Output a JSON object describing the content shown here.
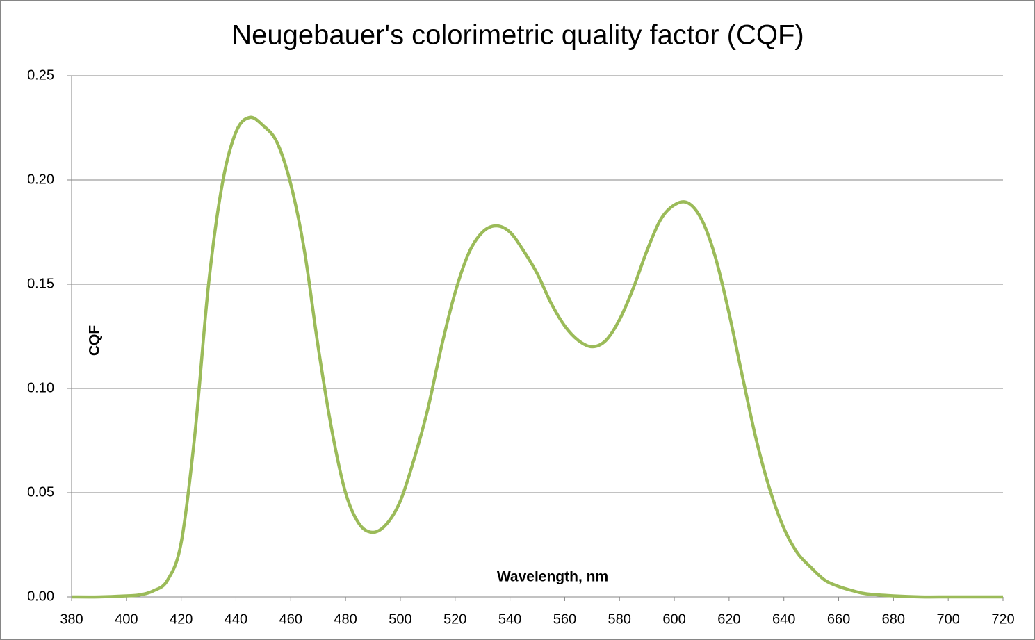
{
  "chart_data": {
    "type": "line",
    "title": "Neugebauer's colorimetric quality factor (CQF)",
    "x_label": "Wavelength, nm",
    "y_label": "CQF",
    "x": [
      380,
      390,
      400,
      405,
      410,
      415,
      420,
      425,
      430,
      435,
      440,
      445,
      450,
      455,
      460,
      465,
      470,
      475,
      480,
      485,
      490,
      495,
      500,
      505,
      510,
      515,
      520,
      525,
      530,
      535,
      540,
      545,
      550,
      555,
      560,
      565,
      570,
      575,
      580,
      585,
      590,
      595,
      600,
      605,
      610,
      615,
      620,
      625,
      630,
      635,
      640,
      645,
      650,
      655,
      660,
      665,
      670,
      680,
      690,
      700,
      710,
      720
    ],
    "series": [
      {
        "name": "CQF",
        "color": "#9bbb59",
        "values": [
          0,
          0,
          0.0005,
          0.001,
          0.003,
          0.008,
          0.026,
          0.078,
          0.15,
          0.198,
          0.223,
          0.23,
          0.226,
          0.218,
          0.198,
          0.166,
          0.12,
          0.08,
          0.05,
          0.035,
          0.031,
          0.035,
          0.046,
          0.066,
          0.09,
          0.12,
          0.146,
          0.165,
          0.175,
          0.178,
          0.175,
          0.166,
          0.155,
          0.141,
          0.13,
          0.123,
          0.12,
          0.123,
          0.133,
          0.148,
          0.166,
          0.181,
          0.188,
          0.189,
          0.181,
          0.163,
          0.136,
          0.105,
          0.075,
          0.051,
          0.033,
          0.021,
          0.014,
          0.008,
          0.005,
          0.003,
          0.0015,
          0.0005,
          0,
          0,
          0,
          0
        ]
      }
    ],
    "xlim": [
      380,
      720
    ],
    "ylim": [
      0,
      0.25
    ],
    "xticks": [
      380,
      400,
      420,
      440,
      460,
      480,
      500,
      520,
      540,
      560,
      580,
      600,
      620,
      640,
      660,
      680,
      700,
      720
    ],
    "yticks": [
      {
        "value": 0,
        "label": "0.00"
      },
      {
        "value": 0.05,
        "label": "0.05"
      },
      {
        "value": 0.1,
        "label": "0.10"
      },
      {
        "value": 0.15,
        "label": "0.15"
      },
      {
        "value": 0.2,
        "label": "0.20"
      },
      {
        "value": 0.25,
        "label": "0.25"
      }
    ],
    "grid": true
  }
}
